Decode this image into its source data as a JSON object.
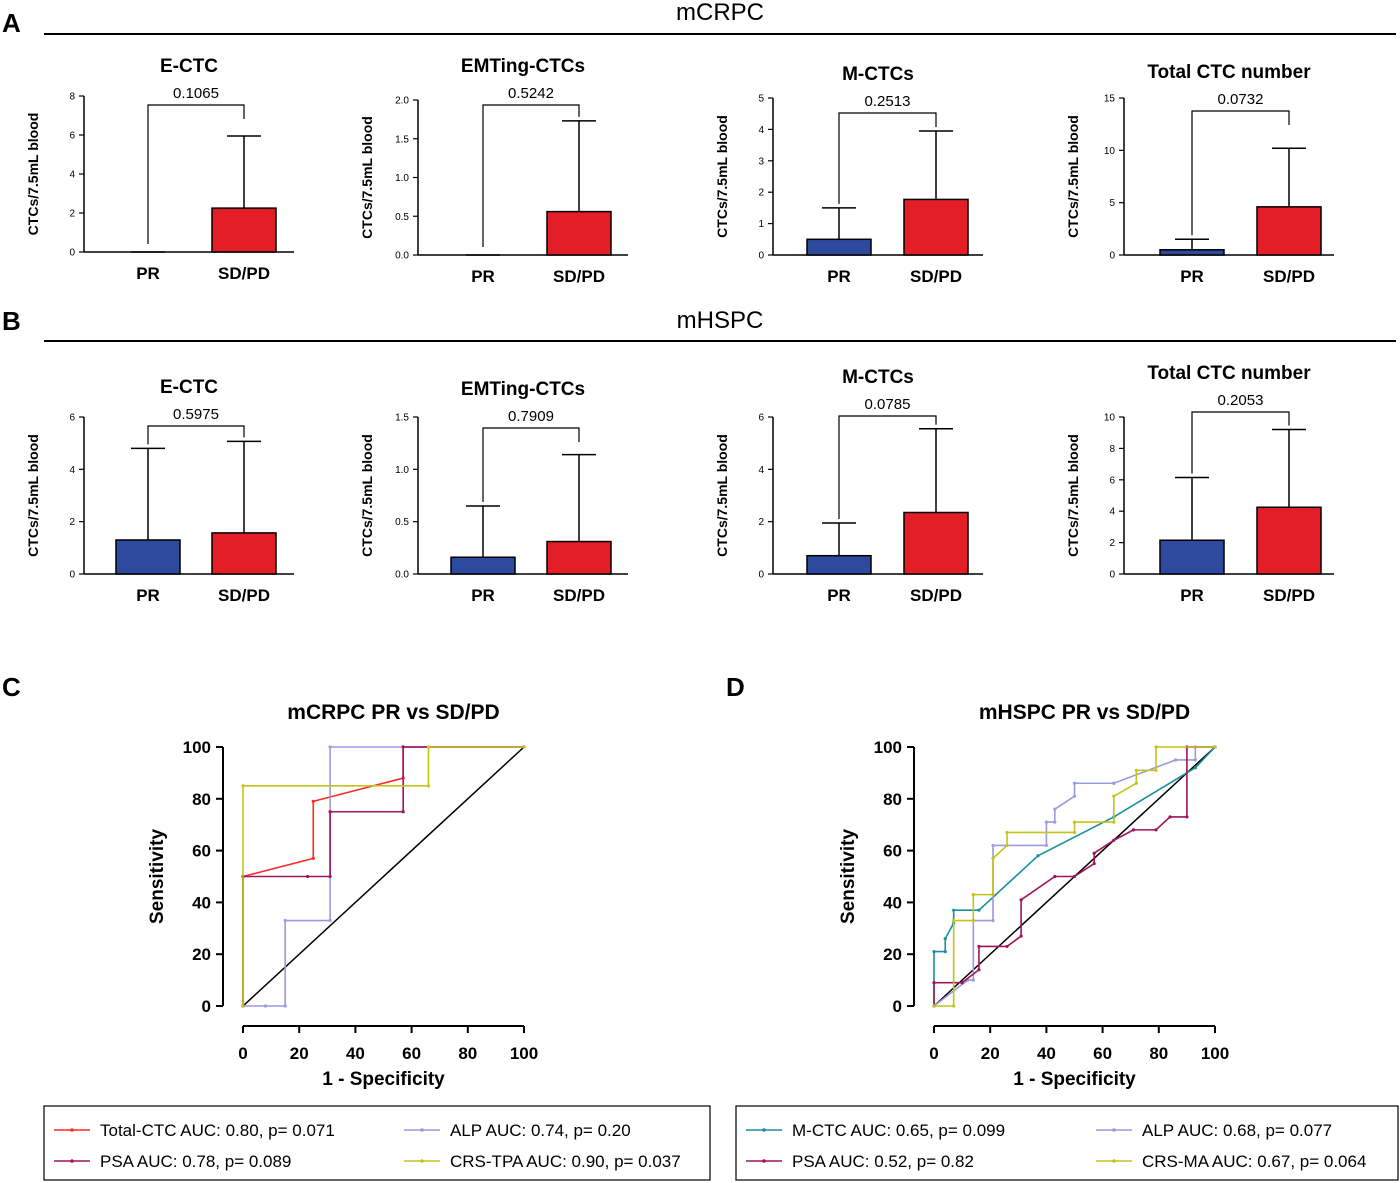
{
  "panels": {
    "A": {
      "letter": "A",
      "section_title": "mCRPC"
    },
    "B": {
      "letter": "B",
      "section_title": "mHSPC"
    },
    "C": {
      "letter": "C"
    },
    "D": {
      "letter": "D"
    }
  },
  "colors": {
    "pr_bar": "#2e4a9e",
    "sdpd_bar": "#e41e26",
    "total_ctc": "#ff2a2a",
    "psa": "#a0145a",
    "alp": "#9a9ae0",
    "crs": "#c6c21a",
    "m_ctc": "#1a8fa0",
    "reference": "#000000"
  },
  "chart_data": [
    {
      "id": "A1",
      "type": "bar",
      "title": "E-CTC",
      "ylabel": "CTCs/7.5mL blood",
      "ylim": [
        0,
        8
      ],
      "yticks": [
        "0",
        "2",
        "4",
        "6",
        "8"
      ],
      "ytick_values": [
        0,
        2,
        4,
        6,
        8
      ],
      "categories": [
        "PR",
        "SD/PD"
      ],
      "values": [
        0,
        2.25
      ],
      "errors": [
        0,
        3.7
      ],
      "p_value": "0.1065"
    },
    {
      "id": "A2",
      "type": "bar",
      "title": "EMTing-CTCs",
      "ylabel": "CTCs/7.5mL blood",
      "ylim": [
        0,
        2
      ],
      "yticks": [
        "0.0",
        "0.5",
        "1.0",
        "1.5",
        "2.0"
      ],
      "ytick_values": [
        0,
        0.5,
        1,
        1.5,
        2
      ],
      "categories": [
        "PR",
        "SD/PD"
      ],
      "values": [
        0,
        0.56
      ],
      "errors": [
        0,
        1.17
      ],
      "p_value": "0.5242"
    },
    {
      "id": "A3",
      "type": "bar",
      "title": "M-CTCs",
      "ylabel": "CTCs/7.5mL blood",
      "ylim": [
        0,
        5
      ],
      "yticks": [
        "0",
        "1",
        "2",
        "3",
        "4",
        "5"
      ],
      "ytick_values": [
        0,
        1,
        2,
        3,
        4,
        5
      ],
      "categories": [
        "PR",
        "SD/PD"
      ],
      "values": [
        0.5,
        1.77
      ],
      "errors": [
        1.0,
        2.18
      ],
      "p_value": "0.2513"
    },
    {
      "id": "A4",
      "type": "bar",
      "title": "Total CTC number",
      "ylabel": "CTCs/7.5mL blood",
      "ylim": [
        0,
        15
      ],
      "yticks": [
        "0",
        "5",
        "10",
        "15"
      ],
      "ytick_values": [
        0,
        5,
        10,
        15
      ],
      "categories": [
        "PR",
        "SD/PD"
      ],
      "values": [
        0.5,
        4.6
      ],
      "errors": [
        1.0,
        5.6
      ],
      "p_value": "0.0732"
    },
    {
      "id": "B1",
      "type": "bar",
      "title": "E-CTC",
      "ylabel": "CTCs/7.5mL blood",
      "ylim": [
        0,
        6
      ],
      "yticks": [
        "0",
        "2",
        "4",
        "6"
      ],
      "ytick_values": [
        0,
        2,
        4,
        6
      ],
      "categories": [
        "PR",
        "SD/PD"
      ],
      "values": [
        1.3,
        1.57
      ],
      "errors": [
        3.5,
        3.5
      ],
      "p_value": "0.5975"
    },
    {
      "id": "B2",
      "type": "bar",
      "title": "EMTing-CTCs",
      "ylabel": "CTCs/7.5mL blood",
      "ylim": [
        0,
        1.5
      ],
      "yticks": [
        "0.0",
        "0.5",
        "1.0",
        "1.5"
      ],
      "ytick_values": [
        0,
        0.5,
        1,
        1.5
      ],
      "categories": [
        "PR",
        "SD/PD"
      ],
      "values": [
        0.16,
        0.31
      ],
      "errors": [
        0.49,
        0.83
      ],
      "p_value": "0.7909"
    },
    {
      "id": "B3",
      "type": "bar",
      "title": "M-CTCs",
      "ylabel": "CTCs/7.5mL blood",
      "ylim": [
        0,
        6
      ],
      "yticks": [
        "0",
        "2",
        "4",
        "6"
      ],
      "ytick_values": [
        0,
        2,
        4,
        6
      ],
      "categories": [
        "PR",
        "SD/PD"
      ],
      "values": [
        0.7,
        2.35
      ],
      "errors": [
        1.25,
        3.2
      ],
      "p_value": "0.0785"
    },
    {
      "id": "B4",
      "type": "bar",
      "title": "Total CTC number",
      "ylabel": "CTCs/7.5mL blood",
      "ylim": [
        0,
        10
      ],
      "yticks": [
        "0",
        "2",
        "4",
        "6",
        "8",
        "10"
      ],
      "ytick_values": [
        0,
        2,
        4,
        6,
        8,
        10
      ],
      "categories": [
        "PR",
        "SD/PD"
      ],
      "values": [
        2.15,
        4.25
      ],
      "errors": [
        4.0,
        4.95
      ],
      "p_value": "0.2053"
    },
    {
      "id": "C",
      "type": "line",
      "title": "mCRPC PR vs SD/PD",
      "xlabel": "1 - Specificity",
      "ylabel": "Sensitivity",
      "xlim": [
        0,
        100
      ],
      "ylim": [
        0,
        100
      ],
      "xticks": [
        "0",
        "20",
        "40",
        "60",
        "80",
        "100"
      ],
      "yticks": [
        "0",
        "20",
        "40",
        "60",
        "80",
        "100"
      ],
      "tick_values": [
        0,
        20,
        40,
        60,
        80,
        100
      ],
      "series": [
        {
          "name": "Total-CTC AUC: 0.80, p= 0.071",
          "color_key": "total_ctc",
          "x": [
            0,
            0,
            25,
            25,
            57,
            57,
            100
          ],
          "y": [
            0,
            50,
            57,
            79,
            88,
            100,
            100
          ]
        },
        {
          "name": "ALP AUC: 0.74, p= 0.20",
          "color_key": "alp",
          "x": [
            0,
            8,
            15,
            15,
            31,
            31,
            100
          ],
          "y": [
            0,
            0,
            0,
            33,
            33,
            100,
            100
          ]
        },
        {
          "name": "PSA AUC: 0.78, p= 0.089",
          "color_key": "psa",
          "x": [
            0,
            0,
            23,
            31,
            31,
            57,
            57,
            100
          ],
          "y": [
            0,
            50,
            50,
            50,
            75,
            75,
            100,
            100
          ]
        },
        {
          "name": "CRS-TPA AUC: 0.90, p= 0.037",
          "color_key": "crs",
          "x": [
            0,
            0,
            66,
            66,
            100
          ],
          "y": [
            0,
            85,
            85,
            100,
            100
          ]
        }
      ]
    },
    {
      "id": "D",
      "type": "line",
      "title": "mHSPC PR vs SD/PD",
      "xlabel": "1 - Specificity",
      "ylabel": "Sensitivity",
      "xlim": [
        0,
        100
      ],
      "ylim": [
        0,
        100
      ],
      "xticks": [
        "0",
        "20",
        "40",
        "60",
        "80",
        "100"
      ],
      "yticks": [
        "0",
        "20",
        "40",
        "60",
        "80",
        "100"
      ],
      "tick_values": [
        0,
        20,
        40,
        60,
        80,
        100
      ],
      "series": [
        {
          "name": "M-CTC AUC: 0.65, p= 0.099",
          "color_key": "m_ctc",
          "x": [
            0,
            0,
            4,
            4,
            7,
            7,
            16,
            37,
            64,
            93,
            100
          ],
          "y": [
            0,
            21,
            21,
            26,
            32,
            37,
            37,
            58,
            73,
            92,
            100
          ]
        },
        {
          "name": "ALP AUC: 0.68, p= 0.077",
          "color_key": "alp",
          "x": [
            0,
            12,
            14,
            14,
            21,
            21,
            40,
            40,
            43,
            43,
            50,
            50,
            64,
            64,
            86,
            93,
            93,
            100
          ],
          "y": [
            0,
            10,
            10,
            33,
            33,
            62,
            62,
            71,
            71,
            76,
            81,
            86,
            86,
            86,
            95,
            95,
            100,
            100
          ]
        },
        {
          "name": "PSA AUC: 0.52, p= 0.82",
          "color_key": "psa",
          "x": [
            0,
            0,
            10,
            16,
            16,
            26,
            31,
            31,
            43,
            50,
            57,
            57,
            64,
            71,
            79,
            84,
            84,
            90,
            90,
            100
          ],
          "y": [
            0,
            9,
            9,
            14,
            23,
            23,
            27,
            41,
            50,
            50,
            55,
            59,
            64,
            68,
            68,
            73,
            73,
            73,
            100,
            100
          ]
        },
        {
          "name": "CRS-MA  AUC: 0.67, p= 0.064",
          "color_key": "crs",
          "x": [
            0,
            0,
            7,
            7,
            14,
            14,
            21,
            21,
            26,
            26,
            50,
            50,
            64,
            64,
            72,
            72,
            79,
            79,
            100
          ],
          "y": [
            0,
            0,
            0,
            33,
            33,
            43,
            43,
            57,
            62,
            67,
            67,
            71,
            71,
            81,
            86,
            91,
            91,
            100,
            100
          ]
        }
      ]
    }
  ]
}
